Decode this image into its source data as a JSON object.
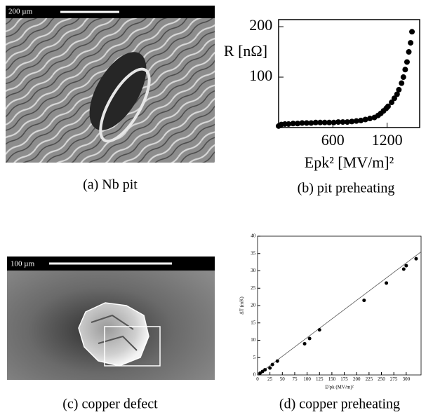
{
  "images": [
    {
      "caption": "(a) Nb pit",
      "scale_label": "200 µm"
    },
    {
      "caption": "(c) copper defect",
      "scale_label": "100 µm"
    }
  ],
  "chart_data": [
    {
      "type": "scatter",
      "caption": "(b) pit preheating",
      "xlabel": "Epk² [MV/m]²",
      "ylabel": "R [nΩ]",
      "xlim": [
        0,
        1560
      ],
      "ylim": [
        0,
        214
      ],
      "xticks": [
        600,
        1200
      ],
      "yticks": [
        100,
        200
      ],
      "color": "#000000",
      "x": [
        0,
        30,
        70,
        110,
        160,
        210,
        260,
        310,
        360,
        410,
        460,
        510,
        560,
        610,
        660,
        710,
        760,
        810,
        860,
        910,
        960,
        1010,
        1060,
        1100,
        1130,
        1160,
        1190,
        1210,
        1250,
        1280,
        1310,
        1330,
        1360,
        1380,
        1400,
        1420,
        1440,
        1460,
        1475
      ],
      "y": [
        3,
        6,
        7,
        7,
        8,
        8,
        9,
        9,
        9,
        10,
        10,
        10,
        10,
        10,
        11,
        11,
        11,
        12,
        13,
        14,
        16,
        18,
        20,
        24,
        28,
        33,
        38,
        42,
        50,
        58,
        66,
        75,
        88,
        100,
        115,
        130,
        150,
        168,
        190
      ]
    },
    {
      "type": "scatter",
      "caption": "(d) copper preheating",
      "xlabel": "E²pk (MV/m)²",
      "ylabel": "ΔT (mK)",
      "xlim": [
        0,
        330
      ],
      "ylim": [
        0,
        40
      ],
      "xticks": [
        0,
        25,
        50,
        75,
        100,
        125,
        150,
        175,
        200,
        225,
        250,
        275,
        300
      ],
      "yticks": [
        0,
        5,
        10,
        15,
        20,
        25,
        30,
        35,
        40
      ],
      "color": "#000000",
      "x": [
        5,
        10,
        15,
        25,
        30,
        40,
        95,
        105,
        125,
        215,
        260,
        295,
        300,
        320
      ],
      "y": [
        0.5,
        1,
        1.5,
        2,
        3,
        4,
        9,
        10.5,
        13,
        21.5,
        26.5,
        30.5,
        31.5,
        33.5
      ],
      "fit": {
        "x": [
          0,
          330
        ],
        "y": [
          0,
          35.5
        ]
      }
    }
  ]
}
